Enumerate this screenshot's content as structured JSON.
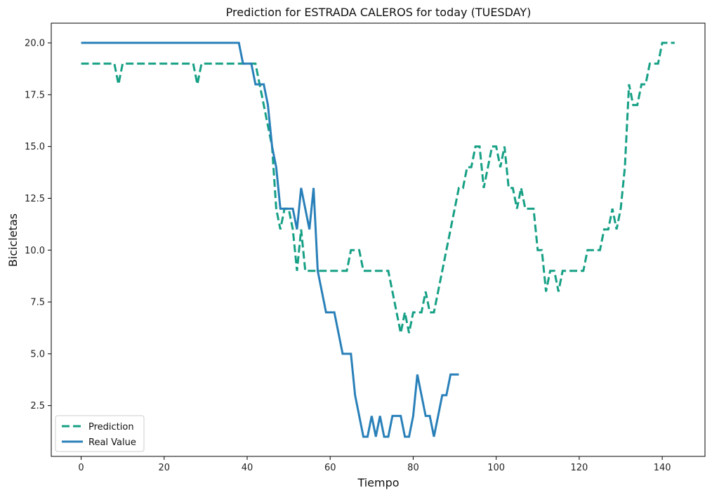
{
  "chart_data": {
    "type": "line",
    "title": "Prediction for ESTRADA CALEROS for today (TUESDAY)",
    "xlabel": "Tiempo",
    "ylabel": "Bicicletas",
    "xlim": [
      -7.2,
      150.3
    ],
    "ylim": [
      0.05,
      20.95
    ],
    "x_ticks": [
      0,
      20,
      40,
      60,
      80,
      100,
      120,
      140
    ],
    "y_ticks": [
      2.5,
      5.0,
      7.5,
      10.0,
      12.5,
      15.0,
      17.5,
      20.0
    ],
    "y_tick_labels": [
      "2.5",
      "5.0",
      "7.5",
      "10.0",
      "12.5",
      "15.0",
      "17.5",
      "20.0"
    ],
    "grid": false,
    "legend_position": "bottom-left",
    "series": [
      {
        "name": "Prediction",
        "color": "#16a085",
        "style": "dashed",
        "x": [
          0,
          8,
          9,
          10,
          27,
          28,
          29,
          42,
          43,
          44,
          45,
          46,
          47,
          48,
          49,
          50,
          51,
          52,
          53,
          54,
          55,
          56,
          64,
          65,
          67,
          68,
          74,
          75,
          76,
          77,
          78,
          79,
          80,
          81,
          82,
          83,
          84,
          85,
          86,
          87,
          88,
          89,
          90,
          91,
          92,
          93,
          94,
          95,
          96,
          97,
          98,
          99,
          100,
          101,
          102,
          103,
          104,
          105,
          106,
          107,
          108,
          109,
          110,
          111,
          112,
          113,
          114,
          115,
          116,
          117,
          118,
          119,
          120,
          121,
          122,
          123,
          124,
          125,
          126,
          127,
          128,
          129,
          130,
          131,
          132,
          133,
          134,
          135,
          136,
          137,
          138,
          139,
          140,
          143
        ],
        "y": [
          19,
          19,
          18,
          19,
          19,
          18,
          19,
          19,
          18,
          17,
          16,
          15,
          12,
          11,
          12,
          12,
          11,
          9,
          11,
          9,
          9,
          9,
          9,
          10,
          10,
          9,
          9,
          8,
          7,
          6,
          7,
          6,
          7,
          7,
          7,
          8,
          7,
          7,
          8,
          9,
          10,
          11,
          12,
          13,
          13,
          14,
          14,
          15,
          15,
          13,
          14,
          15,
          15,
          14,
          15,
          13,
          13,
          12,
          13,
          12,
          12,
          12,
          10,
          10,
          8,
          9,
          9,
          8,
          9,
          9,
          9,
          9,
          9,
          9,
          10,
          10,
          10,
          10,
          11,
          11,
          12,
          11,
          12,
          14,
          18,
          17,
          17,
          18,
          18,
          19,
          19,
          19,
          20,
          20
        ]
      },
      {
        "name": "Real Value",
        "color": "#2980b9",
        "style": "solid",
        "x": [
          0,
          38,
          39,
          40,
          41,
          42,
          43,
          44,
          45,
          46,
          47,
          48,
          49,
          50,
          51,
          52,
          53,
          54,
          55,
          56,
          57,
          58,
          59,
          60,
          61,
          62,
          63,
          64,
          65,
          66,
          67,
          68,
          69,
          70,
          71,
          72,
          73,
          74,
          75,
          76,
          77,
          78,
          79,
          80,
          81,
          82,
          83,
          84,
          85,
          86,
          87,
          88,
          89,
          90,
          91
        ],
        "y": [
          20,
          20,
          19,
          19,
          19,
          18,
          18,
          18,
          17,
          15,
          14,
          12,
          12,
          12,
          12,
          11,
          13,
          12,
          11,
          13,
          9,
          8,
          7,
          7,
          7,
          6,
          5,
          5,
          5,
          3,
          2,
          1,
          1,
          2,
          1,
          2,
          1,
          1,
          2,
          2,
          2,
          1,
          1,
          2,
          4,
          3,
          2,
          2,
          1,
          2,
          3,
          3,
          4,
          4,
          4
        ]
      }
    ]
  }
}
